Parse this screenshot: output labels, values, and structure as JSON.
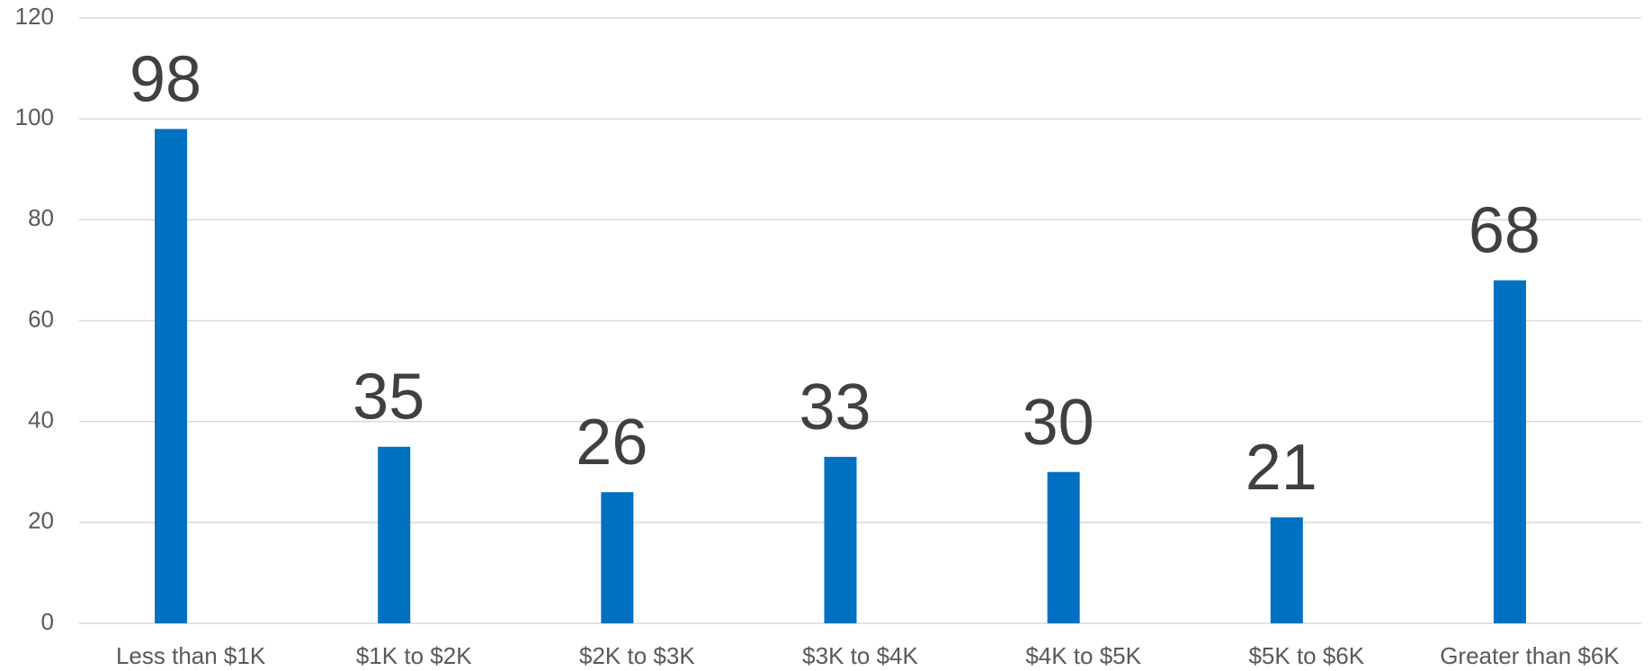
{
  "chart_data": {
    "type": "bar",
    "categories": [
      "Less than $1K",
      "$1K to $2K",
      "$2K to $3K",
      "$3K to $4K",
      "$4K to $5K",
      "$5K to $6K",
      "Greater than $6K"
    ],
    "values": [
      98,
      35,
      26,
      33,
      30,
      21,
      68
    ],
    "color": "#0070c0",
    "ylim": [
      0,
      120
    ],
    "yticks": [
      0,
      20,
      40,
      60,
      80,
      100,
      120
    ],
    "grid": true
  }
}
